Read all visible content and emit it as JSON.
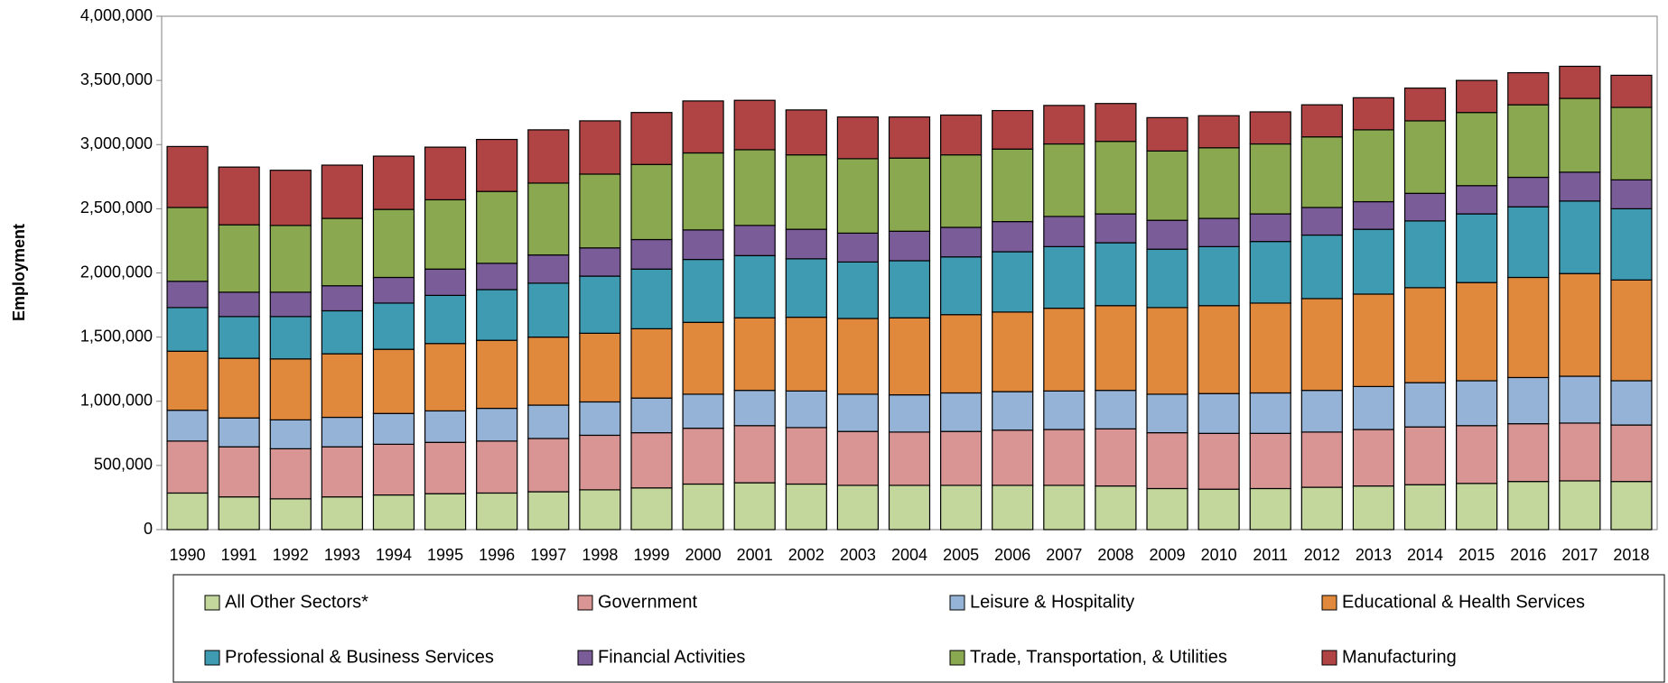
{
  "chart_data": {
    "type": "stacked_bar",
    "y_label": "Employment",
    "categories": [
      "1990",
      "1991",
      "1992",
      "1993",
      "1994",
      "1995",
      "1996",
      "1997",
      "1998",
      "1999",
      "2000",
      "2001",
      "2002",
      "2003",
      "2004",
      "2005",
      "2006",
      "2007",
      "2008",
      "2009",
      "2010",
      "2011",
      "2012",
      "2013",
      "2014",
      "2015",
      "2016",
      "2017",
      "2018"
    ],
    "ylim": [
      0,
      4000000
    ],
    "yticks": [
      0,
      {
        "value": 500000,
        "label": "500,000"
      },
      {
        "value": 1000000,
        "label": "1,000,000"
      },
      {
        "value": 1500000,
        "label": "1,500,000"
      },
      {
        "value": 2000000,
        "label": "2,000,000"
      },
      {
        "value": 2500000,
        "label": "2,500,000"
      },
      {
        "value": 3000000,
        "label": "3,000,000"
      },
      {
        "value": 3500000,
        "label": "3,500,000"
      },
      {
        "value": 4000000,
        "label": "4,000,000"
      }
    ],
    "series": [
      {
        "name": "All Other Sectors*",
        "color": "#c3d69b",
        "values": [
          285000,
          255000,
          240000,
          255000,
          270000,
          280000,
          285000,
          295000,
          310000,
          325000,
          355000,
          365000,
          355000,
          345000,
          345000,
          345000,
          345000,
          345000,
          340000,
          320000,
          315000,
          320000,
          330000,
          340000,
          350000,
          360000,
          375000,
          380000,
          375000
        ]
      },
      {
        "name": "Government",
        "color": "#d99594",
        "values": [
          405000,
          390000,
          390000,
          390000,
          395000,
          400000,
          405000,
          415000,
          425000,
          430000,
          435000,
          445000,
          440000,
          420000,
          415000,
          420000,
          430000,
          435000,
          445000,
          435000,
          435000,
          430000,
          430000,
          440000,
          450000,
          450000,
          450000,
          450000,
          440000
        ]
      },
      {
        "name": "Leisure & Hospitality",
        "color": "#95b3d7",
        "values": [
          240000,
          225000,
          225000,
          230000,
          240000,
          245000,
          255000,
          260000,
          260000,
          270000,
          265000,
          275000,
          285000,
          290000,
          290000,
          300000,
          300000,
          300000,
          300000,
          300000,
          310000,
          315000,
          325000,
          335000,
          345000,
          350000,
          360000,
          365000,
          345000
        ]
      },
      {
        "name": "Educational & Health Services",
        "color": "#e0883c",
        "values": [
          460000,
          465000,
          475000,
          495000,
          500000,
          525000,
          530000,
          530000,
          535000,
          540000,
          560000,
          565000,
          575000,
          590000,
          600000,
          610000,
          620000,
          645000,
          660000,
          675000,
          685000,
          700000,
          715000,
          720000,
          740000,
          765000,
          780000,
          800000,
          785000
        ]
      },
      {
        "name": "Professional & Business Services",
        "color": "#3f9bb2",
        "values": [
          340000,
          325000,
          330000,
          335000,
          360000,
          375000,
          395000,
          420000,
          445000,
          465000,
          490000,
          485000,
          455000,
          440000,
          445000,
          450000,
          470000,
          480000,
          490000,
          455000,
          460000,
          480000,
          495000,
          505000,
          520000,
          535000,
          550000,
          565000,
          555000
        ]
      },
      {
        "name": "Financial Activities",
        "color": "#7a5c99",
        "values": [
          205000,
          190000,
          190000,
          195000,
          200000,
          205000,
          205000,
          220000,
          220000,
          230000,
          230000,
          235000,
          230000,
          225000,
          230000,
          230000,
          235000,
          235000,
          225000,
          225000,
          220000,
          215000,
          215000,
          215000,
          215000,
          220000,
          230000,
          225000,
          225000
        ]
      },
      {
        "name": "Trade, Transportation, & Utilities",
        "color": "#8aa84f",
        "values": [
          575000,
          525000,
          520000,
          525000,
          530000,
          540000,
          560000,
          560000,
          575000,
          585000,
          600000,
          590000,
          580000,
          580000,
          570000,
          565000,
          565000,
          565000,
          565000,
          540000,
          550000,
          545000,
          550000,
          560000,
          565000,
          570000,
          565000,
          575000,
          565000
        ]
      },
      {
        "name": "Manufacturing",
        "color": "#b04444",
        "values": [
          475000,
          450000,
          430000,
          415000,
          415000,
          410000,
          405000,
          415000,
          415000,
          405000,
          405000,
          385000,
          350000,
          325000,
          320000,
          310000,
          300000,
          300000,
          295000,
          260000,
          250000,
          250000,
          250000,
          250000,
          255000,
          250000,
          250000,
          250000,
          250000
        ]
      }
    ]
  }
}
